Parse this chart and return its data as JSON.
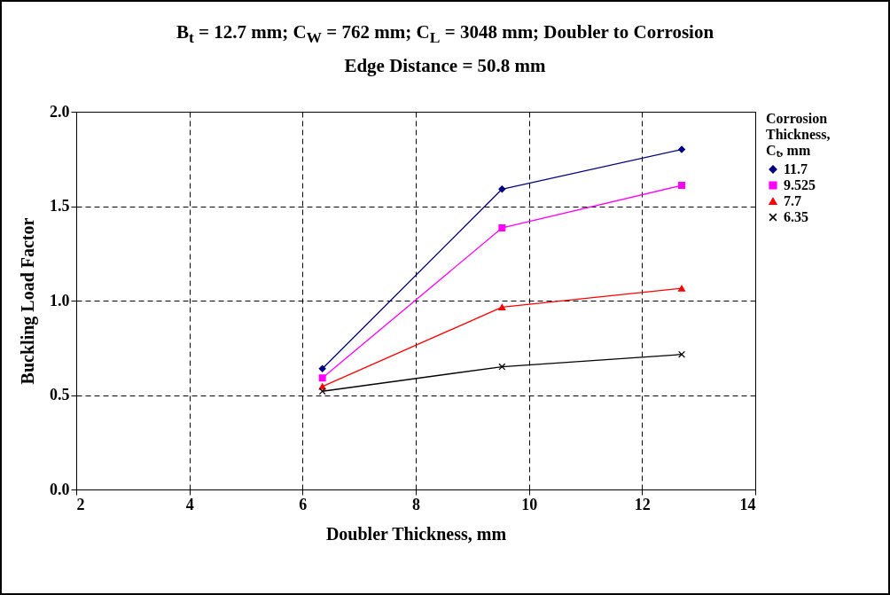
{
  "chart_data": {
    "type": "line",
    "title": "B$_{t}$ = 12.7 mm; C$_{W}$ = 762 mm; C$_{L}$ = 3048 mm; Doubler to Corrosion",
    "subtitle": "Edge Distance = 50.8 mm",
    "xlabel": "Doubler Thickness, mm",
    "ylabel": "Buckling Load Factor",
    "legend_title": "Corrosion Thickness, Cₜ, mm",
    "legend": "right",
    "grid": true,
    "line_style": "solid",
    "x": [
      6.35,
      9.525,
      12.7
    ],
    "xlim": [
      2,
      14
    ],
    "xticks": [
      2,
      4,
      6,
      8,
      10,
      12,
      14
    ],
    "ylim": [
      0,
      2
    ],
    "yticks": [
      {
        "value": 0,
        "label": "0.0"
      },
      0.5,
      {
        "value": 1,
        "label": "1.0"
      },
      1.5,
      {
        "value": 2,
        "label": "2.0"
      }
    ],
    "series": [
      {
        "name": "11.7",
        "color": "#000080",
        "marker": "diamond",
        "values": [
          0.64,
          1.59,
          1.8
        ]
      },
      {
        "name": "9.525",
        "color": "#ff00ff",
        "marker": "square",
        "values": [
          0.59,
          1.385,
          1.61
        ]
      },
      {
        "name": "7.7",
        "color": "#ff0000",
        "marker": "triangle",
        "values": [
          0.545,
          0.965,
          1.065
        ]
      },
      {
        "name": "6.35",
        "color": "#000000",
        "marker": "cross",
        "values": [
          0.52,
          0.65,
          0.715
        ]
      }
    ]
  }
}
